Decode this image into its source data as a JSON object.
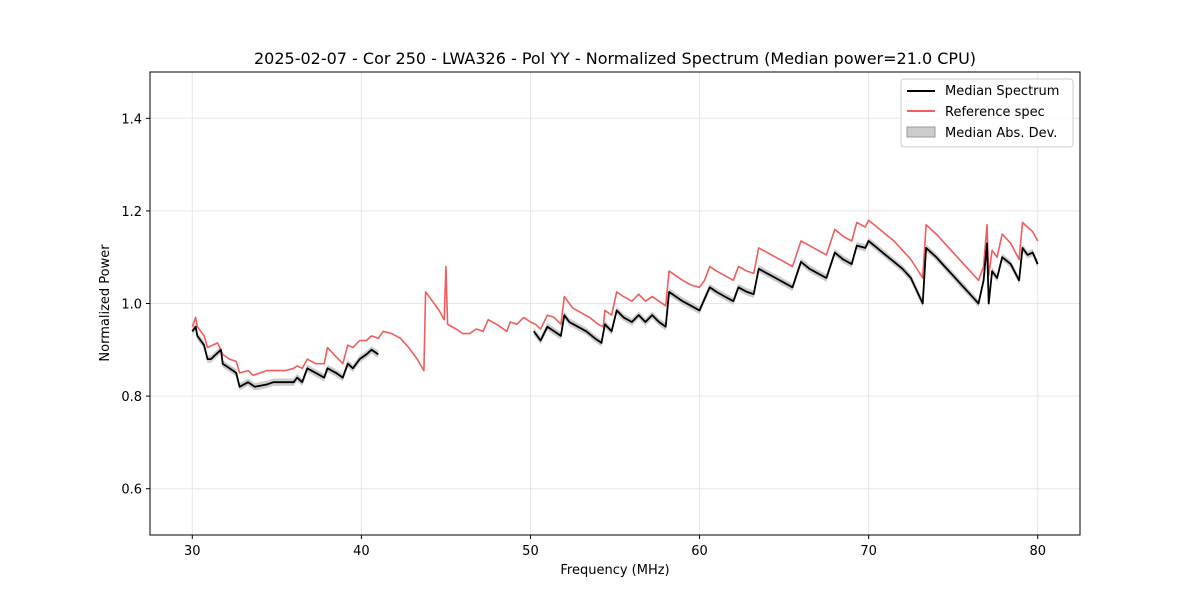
{
  "chart_data": {
    "type": "line",
    "title": "2025-02-07 - Cor 250 - LWA326 - Pol YY - Normalized Spectrum (Median power=21.0 CPU)",
    "xlabel": "Frequency (MHz)",
    "ylabel": "Normalized Power",
    "xlim": [
      27.5,
      82.5
    ],
    "ylim": [
      0.5,
      1.5
    ],
    "xticks": [
      30,
      40,
      50,
      60,
      70,
      80
    ],
    "yticks": [
      0.6,
      0.8,
      1.0,
      1.2,
      1.4
    ],
    "xtick_labels": [
      "30",
      "40",
      "50",
      "60",
      "70",
      "80"
    ],
    "ytick_labels": [
      "0.6",
      "0.8",
      "1.0",
      "1.2",
      "1.4"
    ],
    "grid": true,
    "legend_position": "top-right",
    "series": [
      {
        "name": "Median Spectrum",
        "color": "#000000",
        "segments": [
          [
            [
              30.0,
              0.94
            ],
            [
              30.2,
              0.95
            ],
            [
              30.3,
              0.93
            ],
            [
              30.5,
              0.92
            ],
            [
              30.7,
              0.91
            ],
            [
              30.9,
              0.88
            ],
            [
              31.1,
              0.88
            ],
            [
              31.4,
              0.89
            ],
            [
              31.7,
              0.9
            ],
            [
              31.8,
              0.87
            ],
            [
              32.2,
              0.86
            ],
            [
              32.6,
              0.85
            ],
            [
              32.8,
              0.82
            ],
            [
              33.3,
              0.83
            ],
            [
              33.7,
              0.82
            ],
            [
              34.4,
              0.825
            ],
            [
              34.8,
              0.83
            ],
            [
              35.5,
              0.83
            ],
            [
              36.0,
              0.83
            ],
            [
              36.2,
              0.84
            ],
            [
              36.5,
              0.83
            ],
            [
              36.8,
              0.86
            ],
            [
              37.3,
              0.85
            ],
            [
              37.8,
              0.84
            ],
            [
              38.0,
              0.86
            ],
            [
              38.5,
              0.85
            ],
            [
              38.9,
              0.84
            ],
            [
              39.2,
              0.87
            ],
            [
              39.5,
              0.86
            ],
            [
              39.9,
              0.88
            ],
            [
              40.3,
              0.89
            ],
            [
              40.6,
              0.9
            ],
            [
              41.0,
              0.89
            ]
          ],
          [
            [
              50.2,
              0.94
            ],
            [
              50.6,
              0.92
            ],
            [
              51.0,
              0.95
            ],
            [
              51.4,
              0.94
            ],
            [
              51.8,
              0.93
            ],
            [
              52.0,
              0.975
            ],
            [
              52.3,
              0.96
            ],
            [
              52.8,
              0.95
            ],
            [
              53.3,
              0.94
            ],
            [
              53.8,
              0.925
            ],
            [
              54.2,
              0.915
            ],
            [
              54.4,
              0.955
            ],
            [
              54.8,
              0.94
            ],
            [
              55.1,
              0.985
            ],
            [
              55.5,
              0.97
            ],
            [
              56.0,
              0.96
            ],
            [
              56.4,
              0.975
            ],
            [
              56.8,
              0.96
            ],
            [
              57.2,
              0.975
            ],
            [
              57.6,
              0.96
            ],
            [
              58.0,
              0.95
            ],
            [
              58.2,
              1.025
            ],
            [
              58.6,
              1.015
            ],
            [
              59.0,
              1.005
            ],
            [
              59.5,
              0.995
            ],
            [
              60.0,
              0.985
            ],
            [
              60.3,
              1.01
            ],
            [
              60.6,
              1.035
            ],
            [
              61.0,
              1.025
            ],
            [
              61.5,
              1.015
            ],
            [
              62.0,
              1.005
            ],
            [
              62.3,
              1.035
            ],
            [
              62.8,
              1.025
            ],
            [
              63.2,
              1.02
            ],
            [
              63.5,
              1.075
            ],
            [
              64.0,
              1.065
            ],
            [
              64.5,
              1.055
            ],
            [
              65.0,
              1.045
            ],
            [
              65.5,
              1.035
            ],
            [
              66.0,
              1.09
            ],
            [
              66.5,
              1.075
            ],
            [
              67.0,
              1.065
            ],
            [
              67.5,
              1.055
            ],
            [
              68.0,
              1.11
            ],
            [
              68.5,
              1.095
            ],
            [
              69.0,
              1.085
            ],
            [
              69.3,
              1.125
            ],
            [
              69.8,
              1.12
            ],
            [
              70.0,
              1.135
            ],
            [
              70.5,
              1.12
            ],
            [
              71.0,
              1.105
            ],
            [
              71.5,
              1.09
            ],
            [
              72.0,
              1.075
            ],
            [
              72.5,
              1.055
            ],
            [
              73.2,
              1.0
            ],
            [
              73.4,
              1.12
            ],
            [
              74.0,
              1.1
            ],
            [
              74.5,
              1.08
            ],
            [
              75.0,
              1.06
            ],
            [
              75.5,
              1.04
            ],
            [
              76.0,
              1.02
            ],
            [
              76.5,
              1.0
            ],
            [
              76.8,
              1.05
            ],
            [
              77.0,
              1.13
            ],
            [
              77.1,
              1.0
            ],
            [
              77.3,
              1.07
            ],
            [
              77.6,
              1.055
            ],
            [
              77.9,
              1.1
            ],
            [
              78.4,
              1.085
            ],
            [
              78.9,
              1.05
            ],
            [
              79.1,
              1.12
            ],
            [
              79.4,
              1.105
            ],
            [
              79.7,
              1.11
            ],
            [
              80.0,
              1.085
            ]
          ]
        ]
      },
      {
        "name": "Reference spec",
        "color": "#f15c5c",
        "segments": [
          [
            [
              30.0,
              0.95
            ],
            [
              30.2,
              0.97
            ],
            [
              30.3,
              0.95
            ],
            [
              30.5,
              0.94
            ],
            [
              30.7,
              0.93
            ],
            [
              30.9,
              0.905
            ],
            [
              31.2,
              0.91
            ],
            [
              31.5,
              0.915
            ],
            [
              31.8,
              0.89
            ],
            [
              32.2,
              0.88
            ],
            [
              32.6,
              0.875
            ],
            [
              32.8,
              0.85
            ],
            [
              33.3,
              0.855
            ],
            [
              33.6,
              0.845
            ],
            [
              34.4,
              0.855
            ],
            [
              34.8,
              0.855
            ],
            [
              35.5,
              0.855
            ],
            [
              36.0,
              0.86
            ],
            [
              36.2,
              0.865
            ],
            [
              36.5,
              0.86
            ],
            [
              36.8,
              0.88
            ],
            [
              37.3,
              0.87
            ],
            [
              37.8,
              0.87
            ],
            [
              38.0,
              0.905
            ],
            [
              38.5,
              0.885
            ],
            [
              38.9,
              0.87
            ],
            [
              39.2,
              0.91
            ],
            [
              39.5,
              0.905
            ],
            [
              39.9,
              0.92
            ],
            [
              40.3,
              0.92
            ],
            [
              40.6,
              0.93
            ],
            [
              41.0,
              0.925
            ],
            [
              41.3,
              0.94
            ],
            [
              41.8,
              0.935
            ],
            [
              42.3,
              0.925
            ],
            [
              42.8,
              0.905
            ],
            [
              43.3,
              0.88
            ],
            [
              43.7,
              0.855
            ],
            [
              43.8,
              1.025
            ],
            [
              44.2,
              1.005
            ],
            [
              44.6,
              0.985
            ],
            [
              44.9,
              0.965
            ],
            [
              45.0,
              1.08
            ],
            [
              45.1,
              0.955
            ],
            [
              45.6,
              0.945
            ],
            [
              46.0,
              0.935
            ],
            [
              46.4,
              0.935
            ],
            [
              46.8,
              0.945
            ],
            [
              47.2,
              0.94
            ],
            [
              47.5,
              0.965
            ],
            [
              48.0,
              0.955
            ],
            [
              48.6,
              0.94
            ],
            [
              48.8,
              0.96
            ],
            [
              49.2,
              0.955
            ],
            [
              49.6,
              0.97
            ],
            [
              50.0,
              0.96
            ],
            [
              50.3,
              0.955
            ],
            [
              50.6,
              0.945
            ],
            [
              51.0,
              0.975
            ],
            [
              51.4,
              0.97
            ],
            [
              51.8,
              0.955
            ],
            [
              52.0,
              1.015
            ],
            [
              52.5,
              0.99
            ],
            [
              53.0,
              0.98
            ],
            [
              53.5,
              0.97
            ],
            [
              54.0,
              0.955
            ],
            [
              54.3,
              0.95
            ],
            [
              54.4,
              0.985
            ],
            [
              54.8,
              0.975
            ],
            [
              55.1,
              1.025
            ],
            [
              55.5,
              1.015
            ],
            [
              56.0,
              1.005
            ],
            [
              56.4,
              1.02
            ],
            [
              56.8,
              1.005
            ],
            [
              57.2,
              1.015
            ],
            [
              57.6,
              1.005
            ],
            [
              58.0,
              0.995
            ],
            [
              58.2,
              1.07
            ],
            [
              58.6,
              1.06
            ],
            [
              59.0,
              1.05
            ],
            [
              59.5,
              1.04
            ],
            [
              60.0,
              1.035
            ],
            [
              60.3,
              1.05
            ],
            [
              60.6,
              1.08
            ],
            [
              61.0,
              1.07
            ],
            [
              61.5,
              1.06
            ],
            [
              62.0,
              1.05
            ],
            [
              62.3,
              1.08
            ],
            [
              62.8,
              1.07
            ],
            [
              63.2,
              1.065
            ],
            [
              63.5,
              1.12
            ],
            [
              64.0,
              1.11
            ],
            [
              64.5,
              1.1
            ],
            [
              65.0,
              1.09
            ],
            [
              65.5,
              1.08
            ],
            [
              66.0,
              1.135
            ],
            [
              66.5,
              1.125
            ],
            [
              67.0,
              1.115
            ],
            [
              67.5,
              1.105
            ],
            [
              68.0,
              1.16
            ],
            [
              68.5,
              1.145
            ],
            [
              69.0,
              1.135
            ],
            [
              69.3,
              1.175
            ],
            [
              69.8,
              1.165
            ],
            [
              70.0,
              1.18
            ],
            [
              70.5,
              1.165
            ],
            [
              71.0,
              1.15
            ],
            [
              71.5,
              1.135
            ],
            [
              72.0,
              1.115
            ],
            [
              72.5,
              1.095
            ],
            [
              73.2,
              1.055
            ],
            [
              73.4,
              1.17
            ],
            [
              74.0,
              1.15
            ],
            [
              74.5,
              1.13
            ],
            [
              75.0,
              1.11
            ],
            [
              75.5,
              1.09
            ],
            [
              76.0,
              1.07
            ],
            [
              76.5,
              1.05
            ],
            [
              76.8,
              1.08
            ],
            [
              77.0,
              1.17
            ],
            [
              77.1,
              1.06
            ],
            [
              77.3,
              1.115
            ],
            [
              77.6,
              1.1
            ],
            [
              77.9,
              1.15
            ],
            [
              78.4,
              1.13
            ],
            [
              78.9,
              1.095
            ],
            [
              79.1,
              1.175
            ],
            [
              79.4,
              1.165
            ],
            [
              79.7,
              1.155
            ],
            [
              80.0,
              1.135
            ]
          ]
        ]
      },
      {
        "name": "Median Abs. Dev.",
        "color": "#cccccc",
        "kind": "band",
        "half_width": 0.008
      }
    ]
  }
}
